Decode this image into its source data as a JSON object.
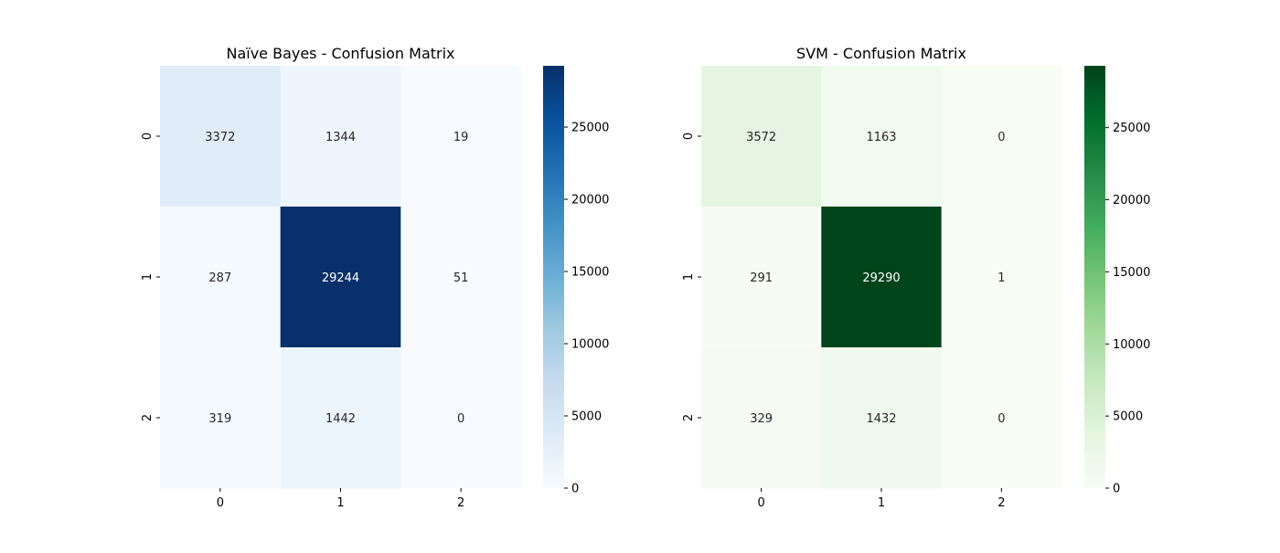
{
  "chart_data": [
    {
      "type": "heatmap",
      "title": "Naïve Bayes - Confusion Matrix",
      "x_ticks": [
        "0",
        "1",
        "2"
      ],
      "y_ticks": [
        "0",
        "1",
        "2"
      ],
      "matrix": [
        [
          3372,
          1344,
          19
        ],
        [
          287,
          29244,
          51
        ],
        [
          319,
          1442,
          0
        ]
      ],
      "colormap": "Blues",
      "colors": [
        "#f7fbff",
        "#deebf7",
        "#c6dbef",
        "#9ecae1",
        "#6baed6",
        "#4292c6",
        "#2171b5",
        "#08519c",
        "#08306b"
      ],
      "colorbar_ticks": [
        0,
        5000,
        10000,
        15000,
        20000,
        25000
      ],
      "vmin": 0,
      "vmax": 29244
    },
    {
      "type": "heatmap",
      "title": "SVM - Confusion Matrix",
      "x_ticks": [
        "0",
        "1",
        "2"
      ],
      "y_ticks": [
        "0",
        "1",
        "2"
      ],
      "matrix": [
        [
          3572,
          1163,
          0
        ],
        [
          291,
          29290,
          1
        ],
        [
          329,
          1432,
          0
        ]
      ],
      "colormap": "Greens",
      "colors": [
        "#f7fcf5",
        "#e5f5e0",
        "#c7e9c0",
        "#a1d99b",
        "#74c476",
        "#41ab5d",
        "#238b45",
        "#006d2c",
        "#00441b"
      ],
      "colorbar_ticks": [
        0,
        5000,
        10000,
        15000,
        20000,
        25000
      ],
      "vmin": 0,
      "vmax": 29290
    }
  ]
}
